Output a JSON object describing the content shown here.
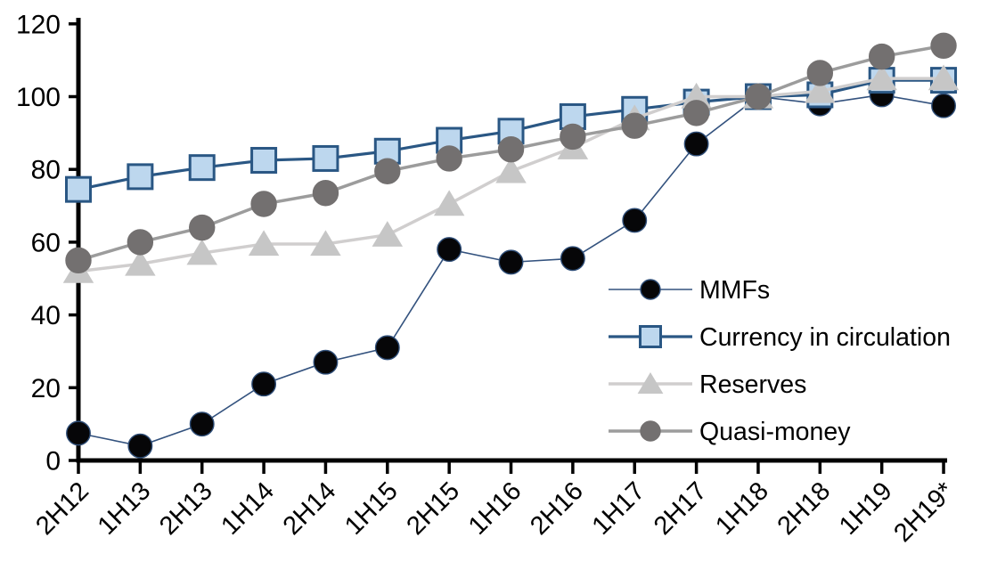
{
  "chart_data": {
    "type": "line",
    "title": "",
    "xlabel": "",
    "ylabel": "",
    "ylim": [
      0,
      120
    ],
    "ytick_step": 20,
    "y_tick_labels": [
      "0",
      "20",
      "40",
      "60",
      "80",
      "100",
      "120"
    ],
    "grid": false,
    "legend_position": "inside-right",
    "categories": [
      "2H12",
      "1H13",
      "2H13",
      "1H14",
      "2H14",
      "1H15",
      "2H15",
      "1H16",
      "2H16",
      "1H17",
      "2H17",
      "1H18",
      "2H18",
      "1H19",
      "2H19*"
    ],
    "series": [
      {
        "name": "MMFs",
        "marker": "circle",
        "marker_color": "#060608",
        "marker_border": "#2E4D77",
        "line_color": "#33527E",
        "line_width": 1.6,
        "values": [
          7.5,
          4,
          10,
          21,
          27,
          31,
          58,
          54.5,
          55.5,
          66,
          87,
          100,
          98,
          100.5,
          97.5
        ]
      },
      {
        "name": "Currency in circulation",
        "marker": "square",
        "marker_color": "#BDD7EE",
        "marker_border": "#2A5784",
        "line_color": "#2A5784",
        "line_width": 3.2,
        "values": [
          74.5,
          78,
          80.5,
          82.5,
          83,
          85,
          88,
          90.5,
          94.5,
          96.5,
          98.5,
          100,
          100.5,
          104.5,
          104.5
        ]
      },
      {
        "name": "Reserves",
        "marker": "triangle",
        "marker_color": "#C6C6C6",
        "marker_border": "#C6C6C6",
        "line_color": "#D0CECE",
        "line_width": 3.5,
        "values": [
          52,
          54,
          57,
          59.5,
          59.5,
          62,
          70.5,
          79.5,
          86,
          94,
          100,
          100,
          101.5,
          105,
          105
        ]
      },
      {
        "name": "Quasi-money",
        "marker": "circle",
        "marker_color": "#737070",
        "marker_border": "#737070",
        "line_color": "#9C9C9C",
        "line_width": 3.5,
        "values": [
          55,
          60,
          64,
          70.5,
          73.5,
          79.5,
          83,
          85.5,
          89,
          92,
          95.5,
          100,
          106.5,
          111,
          114
        ]
      }
    ]
  }
}
